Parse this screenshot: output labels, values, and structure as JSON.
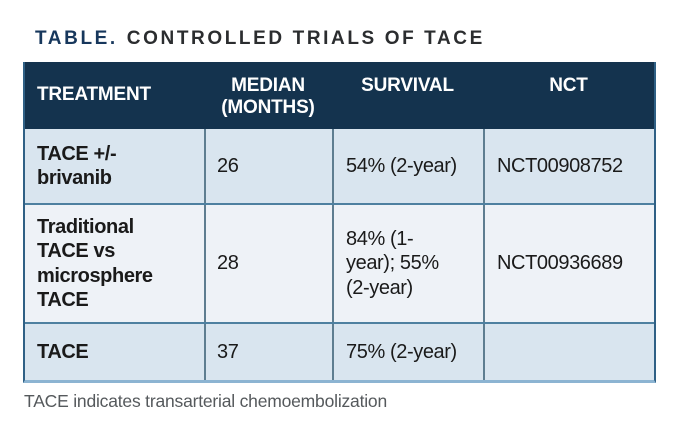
{
  "title": {
    "label": "TABLE.",
    "text": "CONTROLLED TRIALS OF TACE"
  },
  "table": {
    "columns": [
      "TREATMENT",
      "MEDIAN (MONTHS)",
      "SURVIVAL",
      "NCT"
    ],
    "rows": [
      {
        "treatment": "TACE +/- brivanib",
        "median": "26",
        "survival": "54% (2-year)",
        "nct": "NCT00908752"
      },
      {
        "treatment": "Traditional TACE vs microsphere TACE",
        "median": "28",
        "survival": "84% (1-year); 55% (2-year)",
        "nct": "NCT00936689"
      },
      {
        "treatment": "TACE",
        "median": "37",
        "survival": "75% (2-year)",
        "nct": ""
      }
    ]
  },
  "footnote": "TACE indicates transarterial chemoembolization",
  "colors": {
    "header_background": "#14334e",
    "title_accent": "#17375c",
    "row_light_blue": "#d9e5ef",
    "row_pale_blue": "#eef2f7",
    "row_separator": "#4e80a0",
    "column_separator": "#5e7d90",
    "outer_border": "#2f6085",
    "bottom_border": "#8cb4d2",
    "footnote_text": "#55595c"
  }
}
